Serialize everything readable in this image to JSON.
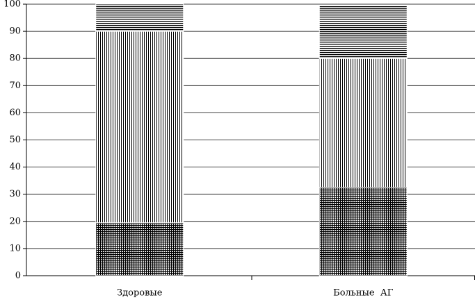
{
  "chart_data": {
    "type": "stacked_bar",
    "categories": [
      "Здоровые",
      "Больные  АГ"
    ],
    "series": [
      {
        "pattern": "crosshatch",
        "color": "#000000",
        "values": [
          19.5,
          32.5
        ]
      },
      {
        "pattern": "vertical",
        "color": "#000000",
        "values": [
          70.5,
          47.5
        ]
      },
      {
        "pattern": "horizontal",
        "color": "#000000",
        "values": [
          10,
          19.5
        ]
      }
    ],
    "ylim": [
      0,
      100
    ],
    "yticks": [
      0,
      10,
      20,
      30,
      40,
      50,
      60,
      70,
      80,
      90,
      100
    ],
    "grid": true
  }
}
